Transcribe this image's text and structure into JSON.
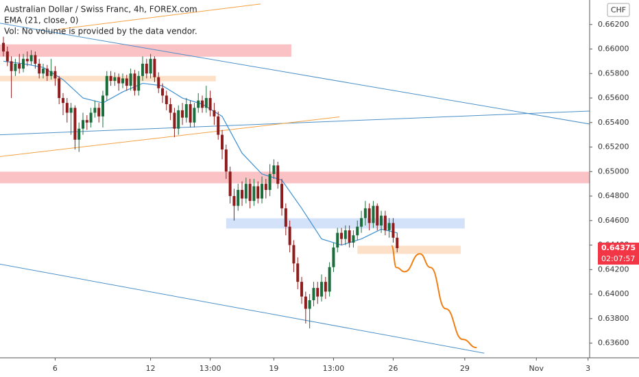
{
  "chart_data": {
    "type": "candlestick",
    "title": "Australian Dollar / Swiss Franc, 4h, FOREX.com",
    "indicator": "EMA (21, close, 0)",
    "volume_note": "Vol: No volume is provided by the data vendor.",
    "currency": "CHF",
    "xlim": [
      0,
      147.4
    ],
    "ylim": [
      0.6348,
      0.664
    ],
    "xticks": [
      {
        "value": 13,
        "label": "6"
      },
      {
        "value": 37,
        "label": "12"
      },
      {
        "value": 52,
        "label": "13:00"
      },
      {
        "value": 68,
        "label": "19"
      },
      {
        "value": 83,
        "label": "13:00"
      },
      {
        "value": 98,
        "label": "26"
      },
      {
        "value": 116,
        "label": "29"
      },
      {
        "value": 134,
        "label": "Nov"
      },
      {
        "value": 147,
        "label": "3"
      }
    ],
    "yticks": [
      {
        "value": 0.636,
        "label": "0.63600"
      },
      {
        "value": 0.638,
        "label": "0.63800"
      },
      {
        "value": 0.64,
        "label": "0.64000"
      },
      {
        "value": 0.642,
        "label": "0.64200"
      },
      {
        "value": 0.644,
        "label": "0.64400"
      },
      {
        "value": 0.646,
        "label": "0.64600"
      },
      {
        "value": 0.648,
        "label": "0.64800"
      },
      {
        "value": 0.65,
        "label": "0.65000"
      },
      {
        "value": 0.652,
        "label": "0.65200"
      },
      {
        "value": 0.654,
        "label": "0.65400"
      },
      {
        "value": 0.656,
        "label": "0.65600"
      },
      {
        "value": 0.658,
        "label": "0.65800"
      },
      {
        "value": 0.66,
        "label": "0.66000"
      },
      {
        "value": 0.662,
        "label": "0.66200"
      }
    ],
    "grid": false,
    "up_color": "#1b6e3c",
    "down_color": "#8e1c1c",
    "x": [
      0,
      1,
      2,
      3,
      4,
      5,
      6,
      7,
      8,
      9,
      10,
      11,
      12,
      13,
      14,
      15,
      16,
      17,
      18,
      19,
      20,
      21,
      22,
      23,
      24,
      25,
      26,
      27,
      28,
      29,
      30,
      31,
      32,
      33,
      34,
      35,
      36,
      37,
      38,
      39,
      40,
      41,
      42,
      43,
      44,
      45,
      46,
      47,
      48,
      49,
      50,
      51,
      52,
      53,
      54,
      55,
      56,
      57,
      58,
      59,
      60,
      61,
      62,
      63,
      64,
      65,
      66,
      67,
      68,
      69,
      70,
      71,
      72,
      73,
      74,
      75,
      76,
      77,
      78,
      79,
      80,
      81,
      82,
      83,
      84,
      85,
      86,
      87,
      88,
      89,
      90,
      91,
      92,
      93,
      94,
      95,
      96,
      97,
      98,
      99
    ],
    "open": [
      0.6605,
      0.6598,
      0.659,
      0.6582,
      0.6588,
      0.6584,
      0.6592,
      0.659,
      0.6595,
      0.6588,
      0.658,
      0.6584,
      0.6578,
      0.6582,
      0.6576,
      0.656,
      0.6556,
      0.6548,
      0.6552,
      0.6526,
      0.6535,
      0.6542,
      0.654,
      0.6548,
      0.6552,
      0.6545,
      0.6562,
      0.6578,
      0.6574,
      0.6577,
      0.6572,
      0.6576,
      0.657,
      0.658,
      0.6566,
      0.6578,
      0.6588,
      0.658,
      0.6592,
      0.6577,
      0.6568,
      0.6562,
      0.6555,
      0.6548,
      0.6535,
      0.655,
      0.6544,
      0.6555,
      0.654,
      0.6552,
      0.6558,
      0.6552,
      0.656,
      0.655,
      0.6545,
      0.653,
      0.6518,
      0.65,
      0.648,
      0.6472,
      0.6485,
      0.6478,
      0.649,
      0.6476,
      0.6488,
      0.6478,
      0.649,
      0.6485,
      0.6498,
      0.6505,
      0.649,
      0.647,
      0.6455,
      0.644,
      0.6425,
      0.641,
      0.6398,
      0.6388,
      0.6395,
      0.6405,
      0.6398,
      0.641,
      0.6402,
      0.6422,
      0.6438,
      0.645,
      0.6445,
      0.6452,
      0.6442,
      0.6448,
      0.6455,
      0.6462,
      0.647,
      0.6458,
      0.6472,
      0.6456,
      0.6464,
      0.6452,
      0.6458,
      0.6446
    ],
    "high": [
      0.661,
      0.6602,
      0.6594,
      0.6592,
      0.6596,
      0.6596,
      0.6598,
      0.6599,
      0.6598,
      0.6592,
      0.6588,
      0.6587,
      0.6592,
      0.6586,
      0.6578,
      0.6564,
      0.656,
      0.6556,
      0.6554,
      0.654,
      0.6548,
      0.6546,
      0.6552,
      0.6558,
      0.6556,
      0.6566,
      0.6582,
      0.6582,
      0.6581,
      0.658,
      0.658,
      0.6579,
      0.6584,
      0.6583,
      0.6582,
      0.6594,
      0.6592,
      0.6596,
      0.6594,
      0.6581,
      0.6572,
      0.6566,
      0.656,
      0.6552,
      0.6554,
      0.6556,
      0.656,
      0.6558,
      0.6556,
      0.6564,
      0.6562,
      0.657,
      0.6566,
      0.6556,
      0.6549,
      0.6534,
      0.6522,
      0.6504,
      0.6486,
      0.649,
      0.6492,
      0.6495,
      0.6494,
      0.6494,
      0.6492,
      0.6496,
      0.6494,
      0.6506,
      0.651,
      0.6508,
      0.6494,
      0.6474,
      0.646,
      0.6444,
      0.643,
      0.6414,
      0.6402,
      0.64,
      0.641,
      0.641,
      0.6416,
      0.6414,
      0.6426,
      0.6442,
      0.6454,
      0.6454,
      0.6456,
      0.6456,
      0.6452,
      0.646,
      0.6468,
      0.6476,
      0.6474,
      0.6476,
      0.6474,
      0.6468,
      0.6468,
      0.6462,
      0.6462,
      0.645
    ],
    "low": [
      0.6594,
      0.6586,
      0.656,
      0.6578,
      0.658,
      0.6581,
      0.6586,
      0.6587,
      0.6584,
      0.6576,
      0.6576,
      0.6574,
      0.6575,
      0.657,
      0.6555,
      0.6546,
      0.654,
      0.653,
      0.6518,
      0.6516,
      0.653,
      0.6534,
      0.6536,
      0.6544,
      0.654,
      0.6536,
      0.6558,
      0.657,
      0.657,
      0.6566,
      0.6568,
      0.6566,
      0.6566,
      0.6562,
      0.6562,
      0.6574,
      0.6576,
      0.6576,
      0.6573,
      0.6564,
      0.6556,
      0.655,
      0.6542,
      0.6528,
      0.653,
      0.6538,
      0.654,
      0.6536,
      0.6536,
      0.6548,
      0.6548,
      0.6548,
      0.6545,
      0.6538,
      0.6526,
      0.651,
      0.6494,
      0.6474,
      0.646,
      0.6468,
      0.6472,
      0.6474,
      0.647,
      0.6472,
      0.6474,
      0.6474,
      0.6478,
      0.648,
      0.6494,
      0.6486,
      0.6464,
      0.6448,
      0.6434,
      0.6418,
      0.6404,
      0.6392,
      0.6376,
      0.6372,
      0.639,
      0.6392,
      0.6394,
      0.6396,
      0.6398,
      0.6418,
      0.6434,
      0.644,
      0.644,
      0.6438,
      0.6438,
      0.6444,
      0.645,
      0.6456,
      0.6452,
      0.6454,
      0.6452,
      0.645,
      0.6448,
      0.6446,
      0.6442,
      0.6434
    ],
    "close": [
      0.6598,
      0.659,
      0.6582,
      0.6588,
      0.6584,
      0.6592,
      0.659,
      0.6595,
      0.6588,
      0.658,
      0.6584,
      0.6578,
      0.6582,
      0.6576,
      0.656,
      0.6556,
      0.6548,
      0.6552,
      0.6526,
      0.6535,
      0.6542,
      0.654,
      0.6548,
      0.6552,
      0.6545,
      0.6562,
      0.6578,
      0.6574,
      0.6577,
      0.6572,
      0.6576,
      0.657,
      0.658,
      0.6566,
      0.6578,
      0.6588,
      0.658,
      0.6592,
      0.6577,
      0.6568,
      0.6562,
      0.6555,
      0.6548,
      0.6535,
      0.655,
      0.6544,
      0.6555,
      0.654,
      0.6552,
      0.6558,
      0.6552,
      0.656,
      0.655,
      0.6545,
      0.653,
      0.6518,
      0.65,
      0.648,
      0.6472,
      0.6485,
      0.6478,
      0.649,
      0.6476,
      0.6488,
      0.6478,
      0.649,
      0.6485,
      0.6498,
      0.6505,
      0.649,
      0.647,
      0.6455,
      0.644,
      0.6425,
      0.641,
      0.6398,
      0.6388,
      0.6395,
      0.6405,
      0.6398,
      0.641,
      0.6402,
      0.6422,
      0.6438,
      0.645,
      0.6445,
      0.6452,
      0.6442,
      0.6448,
      0.6455,
      0.6462,
      0.647,
      0.6458,
      0.6472,
      0.6456,
      0.6464,
      0.6452,
      0.6458,
      0.6446,
      0.64375
    ],
    "ema": {
      "color": "#3d8fd1",
      "x": [
        0,
        5,
        10,
        15,
        20,
        25,
        30,
        35,
        40,
        45,
        50,
        55,
        60,
        65,
        70,
        75,
        80,
        85,
        90,
        95,
        99
      ],
      "values": [
        0.659,
        0.6588,
        0.6585,
        0.6575,
        0.656,
        0.6556,
        0.6565,
        0.6572,
        0.657,
        0.656,
        0.6555,
        0.6545,
        0.6515,
        0.6498,
        0.6493,
        0.647,
        0.6445,
        0.644,
        0.6445,
        0.6453,
        0.645
      ]
    },
    "price_label": {
      "value": 0.64375,
      "label": "0.64375"
    },
    "price_label_color": "#f23645",
    "countdown": "02:07:57",
    "drawings": [
      {
        "type": "zone",
        "color": "#f9aeb2",
        "x": [
          -1,
          72.4
        ],
        "y": [
          0.66038,
          0.65937
        ]
      },
      {
        "type": "zone",
        "color": "#fcd5b5",
        "x": [
          -1,
          53.4
        ],
        "y": [
          0.65781,
          0.65736
        ]
      },
      {
        "type": "zone",
        "color": "#f9aeb2",
        "x": [
          -1,
          148
        ],
        "y": [
          0.64999,
          0.64904
        ]
      },
      {
        "type": "zone",
        "color": "#c6d8f7",
        "x": [
          56,
          116
        ],
        "y": [
          0.64619,
          0.64535
        ]
      },
      {
        "type": "zone",
        "color": "#fcd5b5",
        "x": [
          89,
          115
        ],
        "y": [
          0.64395,
          0.64328
        ]
      },
      {
        "type": "line",
        "color": "#4a8fc8",
        "x": [
          -1,
          149
        ],
        "y": [
          0.66211,
          0.65379
        ]
      },
      {
        "type": "line",
        "color": "#4a8fc8",
        "x": [
          -1,
          149
        ],
        "y": [
          0.653,
          0.65496
        ]
      },
      {
        "type": "line",
        "color": "#4a8fc8",
        "x": [
          -1,
          120.9
        ],
        "y": [
          0.64245,
          0.63518
        ]
      },
      {
        "type": "line",
        "color": "#f5a040",
        "x": [
          13.8,
          64.7
        ],
        "y": [
          0.66161,
          0.66368
        ]
      },
      {
        "type": "line",
        "color": "#f5a040",
        "x": [
          -1,
          84.5
        ],
        "y": [
          0.65122,
          0.65446
        ]
      },
      {
        "type": "path",
        "color": "#f07f13",
        "x": [
          97.6,
          98.8,
          100.9,
          104.7,
          107.4,
          111.2,
          115.5,
          119
        ],
        "y": [
          0.64395,
          0.64217,
          0.64183,
          0.64329,
          0.64217,
          0.63881,
          0.6363,
          0.63563
        ]
      }
    ]
  }
}
